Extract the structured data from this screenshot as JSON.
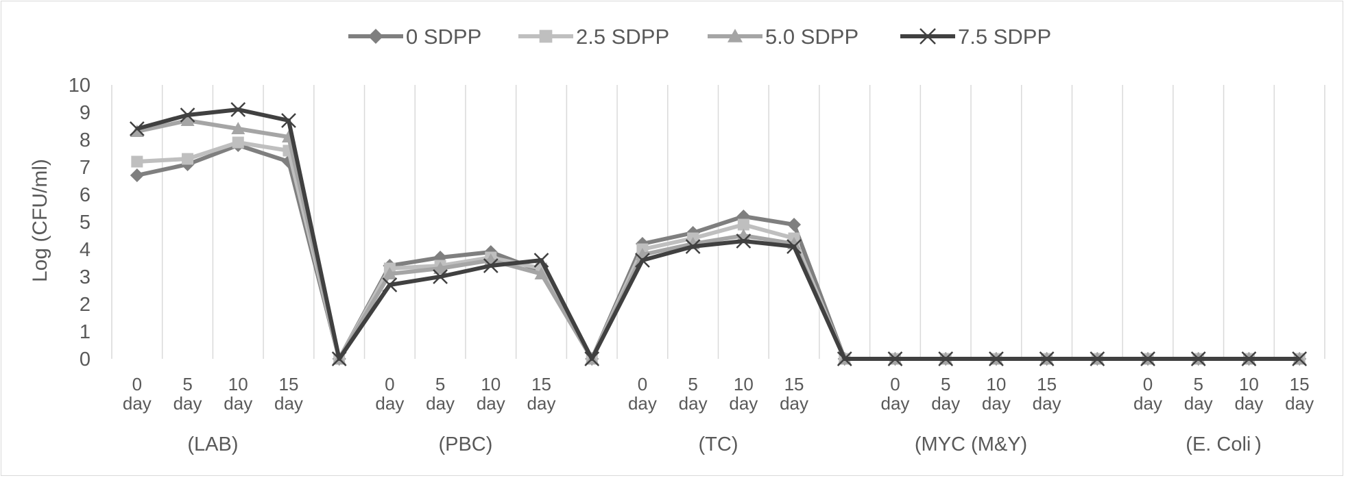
{
  "chart_data": {
    "type": "line",
    "title": "",
    "xlabel": "",
    "ylabel": "Log (CFU/ml)",
    "ylim": [
      0,
      10
    ],
    "yticks": [
      "0",
      "1",
      "2",
      "3",
      "4",
      "5",
      "6",
      "7",
      "8",
      "9",
      "10"
    ],
    "grid": "vertical",
    "legend_position": "top",
    "categories": [
      [
        "0",
        "day"
      ],
      [
        "5",
        "day"
      ],
      [
        "10",
        "day"
      ],
      [
        "15",
        "day"
      ],
      [
        "",
        ""
      ],
      [
        "0",
        "day"
      ],
      [
        "5",
        "day"
      ],
      [
        "10",
        "day"
      ],
      [
        "15",
        "day"
      ],
      [
        "",
        ""
      ],
      [
        "0",
        "day"
      ],
      [
        "5",
        "day"
      ],
      [
        "10",
        "day"
      ],
      [
        "15",
        "day"
      ],
      [
        "",
        ""
      ],
      [
        "0",
        "day"
      ],
      [
        "5",
        "day"
      ],
      [
        "10",
        "day"
      ],
      [
        "15",
        "day"
      ],
      [
        "",
        ""
      ],
      [
        "0",
        "day"
      ],
      [
        "5",
        "day"
      ],
      [
        "10",
        "day"
      ],
      [
        "15",
        "day"
      ]
    ],
    "groups": [
      {
        "label": "(LAB)",
        "start": 0,
        "end": 3
      },
      {
        "label": "(PBC)",
        "start": 5,
        "end": 8
      },
      {
        "label": "(TC)",
        "start": 10,
        "end": 13
      },
      {
        "label": "(MYC (M&Y)",
        "start": 15,
        "end": 18
      },
      {
        "label": "(E. Coli )",
        "start": 20,
        "end": 23
      }
    ],
    "series": [
      {
        "name": "0 SDPP",
        "marker": "diamond",
        "color": "#7f7f7f",
        "values": [
          6.7,
          7.1,
          7.8,
          7.2,
          0,
          3.4,
          3.7,
          3.9,
          3.2,
          0,
          4.2,
          4.6,
          5.2,
          4.9,
          0,
          0,
          0,
          0,
          0,
          0,
          0,
          0,
          0,
          0
        ]
      },
      {
        "name": "2.5 SDPP",
        "marker": "square",
        "color": "#bfbfbf",
        "values": [
          7.2,
          7.3,
          7.9,
          7.6,
          0,
          3.3,
          3.4,
          3.7,
          3.3,
          0,
          4.0,
          4.4,
          4.9,
          4.4,
          0,
          0,
          0,
          0,
          0,
          0,
          0,
          0,
          0,
          0
        ]
      },
      {
        "name": "5.0 SDPP",
        "marker": "triangle",
        "color": "#a5a5a5",
        "values": [
          8.3,
          8.7,
          8.4,
          8.1,
          0,
          3.1,
          3.3,
          3.6,
          3.1,
          0,
          3.8,
          4.2,
          4.5,
          4.2,
          0,
          0,
          0,
          0,
          0,
          0,
          0,
          0,
          0,
          0
        ]
      },
      {
        "name": "7.5 SDPP",
        "marker": "x",
        "color": "#404040",
        "values": [
          8.4,
          8.9,
          9.1,
          8.7,
          0,
          2.7,
          3.0,
          3.4,
          3.6,
          0,
          3.6,
          4.1,
          4.3,
          4.1,
          0,
          0,
          0,
          0,
          0,
          0,
          0,
          0,
          0,
          0
        ]
      }
    ]
  }
}
